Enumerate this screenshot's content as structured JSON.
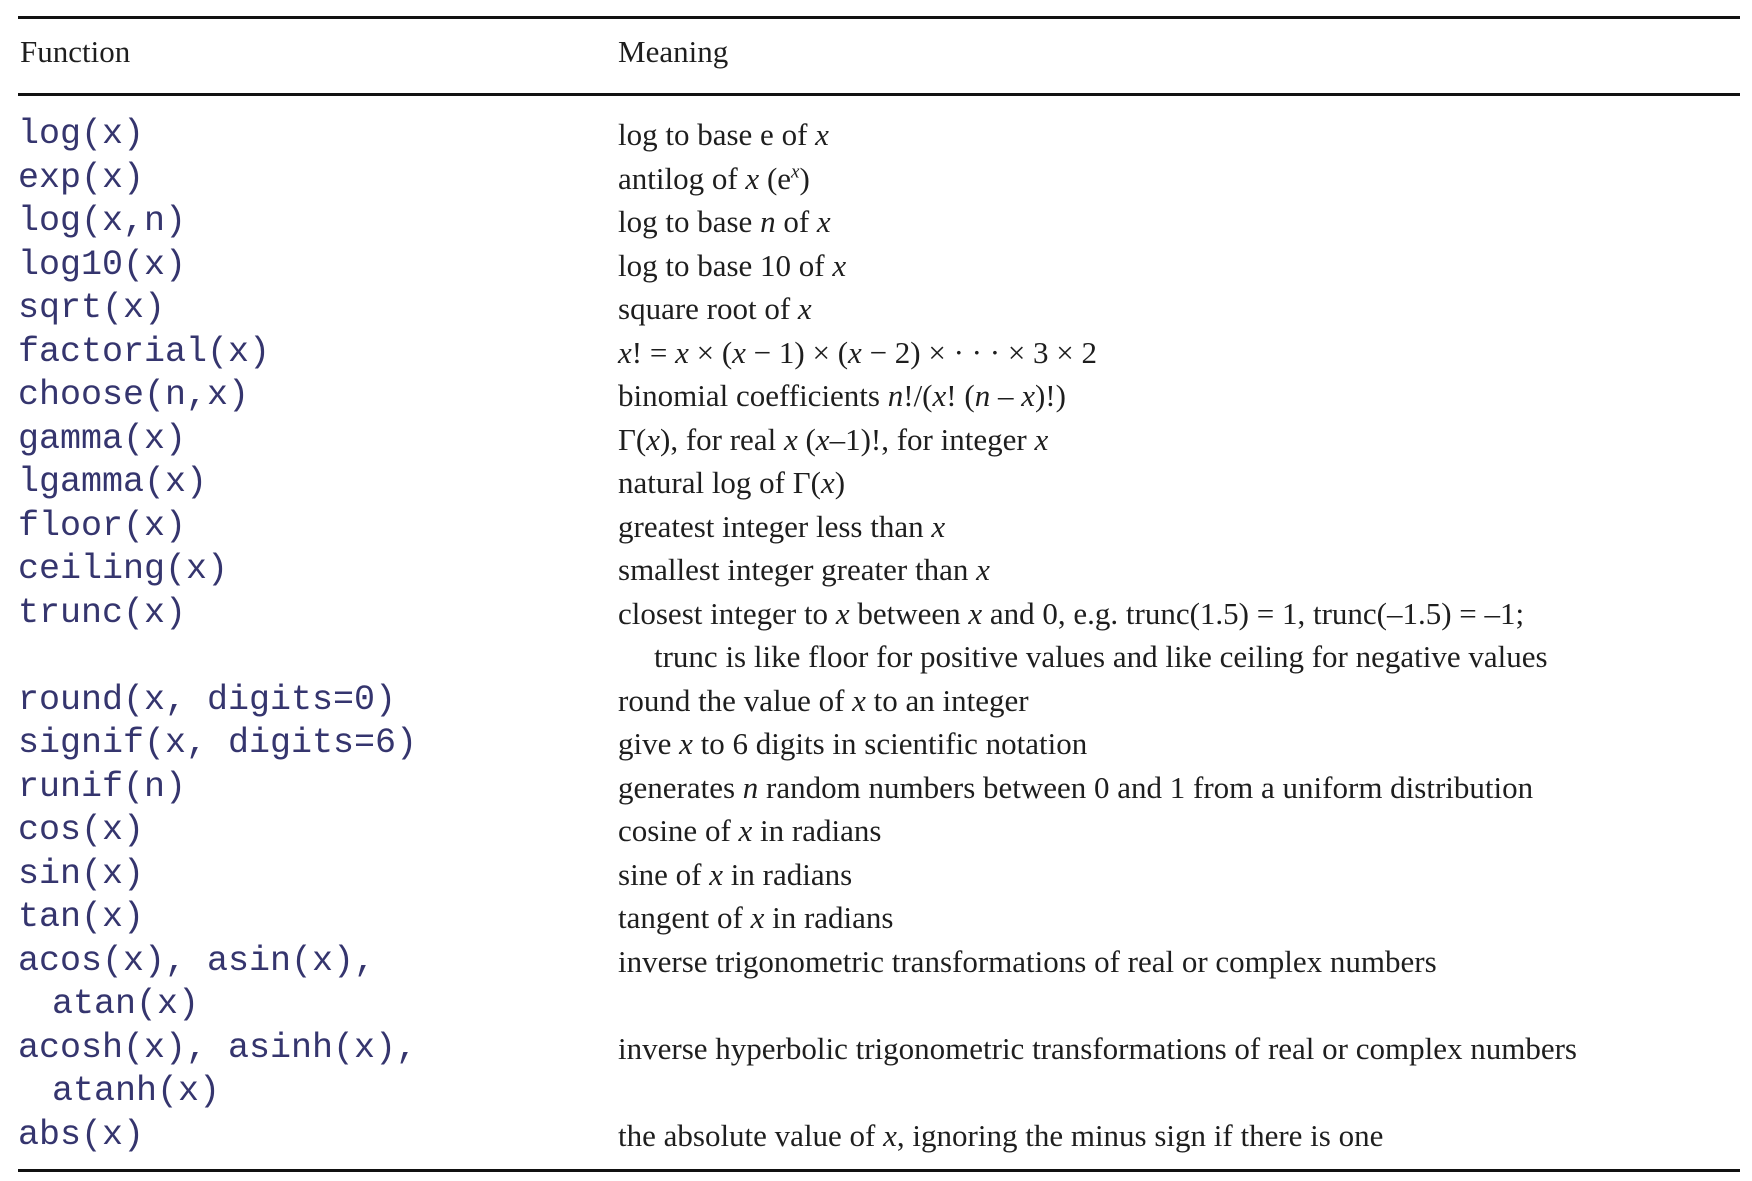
{
  "table": {
    "headers": {
      "function": "Function",
      "meaning": "Meaning"
    },
    "rows": [
      {
        "fn": [
          "log(x)"
        ],
        "meaning": [
          [
            {
              "t": "log to base e of "
            },
            {
              "t": "x",
              "i": true
            }
          ]
        ]
      },
      {
        "fn": [
          "exp(x)"
        ],
        "meaning": [
          [
            {
              "t": "antilog of "
            },
            {
              "t": "x",
              "i": true
            },
            {
              "t": " (e"
            },
            {
              "t": "x",
              "i": true,
              "sup": true
            },
            {
              "t": ")"
            }
          ]
        ]
      },
      {
        "fn": [
          "log(x,n)"
        ],
        "meaning": [
          [
            {
              "t": "log to base "
            },
            {
              "t": "n",
              "i": true
            },
            {
              "t": " of "
            },
            {
              "t": "x",
              "i": true
            }
          ]
        ]
      },
      {
        "fn": [
          "log10(x)"
        ],
        "meaning": [
          [
            {
              "t": "log to base 10 of "
            },
            {
              "t": "x",
              "i": true
            }
          ]
        ]
      },
      {
        "fn": [
          "sqrt(x)"
        ],
        "meaning": [
          [
            {
              "t": "square root of "
            },
            {
              "t": "x",
              "i": true
            }
          ]
        ]
      },
      {
        "fn": [
          "factorial(x)"
        ],
        "meaning": [
          [
            {
              "t": "x",
              "i": true
            },
            {
              "t": "! = "
            },
            {
              "t": "x",
              "i": true
            },
            {
              "t": " × ("
            },
            {
              "t": "x",
              "i": true
            },
            {
              "t": " − 1) × ("
            },
            {
              "t": "x",
              "i": true
            },
            {
              "t": " − 2) × · · · × 3 × 2"
            }
          ]
        ]
      },
      {
        "fn": [
          "choose(n,x)"
        ],
        "meaning": [
          [
            {
              "t": "binomial coefficients "
            },
            {
              "t": "n",
              "i": true
            },
            {
              "t": "!/("
            },
            {
              "t": "x",
              "i": true
            },
            {
              "t": "! ("
            },
            {
              "t": "n",
              "i": true
            },
            {
              "t": " – "
            },
            {
              "t": "x",
              "i": true
            },
            {
              "t": ")!)"
            }
          ]
        ]
      },
      {
        "fn": [
          "gamma(x)"
        ],
        "meaning": [
          [
            {
              "t": "Γ("
            },
            {
              "t": "x",
              "i": true
            },
            {
              "t": "), for real "
            },
            {
              "t": "x",
              "i": true
            },
            {
              "t": " ("
            },
            {
              "t": "x",
              "i": true
            },
            {
              "t": "–1)!, for integer "
            },
            {
              "t": "x",
              "i": true
            }
          ]
        ]
      },
      {
        "fn": [
          "lgamma(x)"
        ],
        "meaning": [
          [
            {
              "t": "natural log of Γ("
            },
            {
              "t": "x",
              "i": true
            },
            {
              "t": ")"
            }
          ]
        ]
      },
      {
        "fn": [
          "floor(x)"
        ],
        "meaning": [
          [
            {
              "t": "greatest integer less than "
            },
            {
              "t": "x",
              "i": true
            }
          ]
        ]
      },
      {
        "fn": [
          "ceiling(x)"
        ],
        "meaning": [
          [
            {
              "t": "smallest integer greater than "
            },
            {
              "t": "x",
              "i": true
            }
          ]
        ]
      },
      {
        "fn": [
          "trunc(x)"
        ],
        "meaning": [
          [
            {
              "t": "closest integer to "
            },
            {
              "t": "x",
              "i": true
            },
            {
              "t": " between "
            },
            {
              "t": "x",
              "i": true
            },
            {
              "t": " and 0, e.g. trunc(1.5) = 1, trunc(–1.5) = –1;"
            }
          ],
          [
            {
              "t": "trunc is like floor for positive values and like ceiling for negative values"
            }
          ]
        ]
      },
      {
        "fn": [
          "round(x, digits=0)"
        ],
        "meaning": [
          [
            {
              "t": "round the value of "
            },
            {
              "t": "x",
              "i": true
            },
            {
              "t": " to an integer"
            }
          ]
        ]
      },
      {
        "fn": [
          "signif(x, digits=6)"
        ],
        "meaning": [
          [
            {
              "t": "give "
            },
            {
              "t": "x",
              "i": true
            },
            {
              "t": " to 6 digits in scientific notation"
            }
          ]
        ]
      },
      {
        "fn": [
          "runif(n)"
        ],
        "meaning": [
          [
            {
              "t": "generates "
            },
            {
              "t": "n",
              "i": true
            },
            {
              "t": " random numbers between 0 and 1 from a uniform distribution"
            }
          ]
        ]
      },
      {
        "fn": [
          "cos(x)"
        ],
        "meaning": [
          [
            {
              "t": "cosine of "
            },
            {
              "t": "x",
              "i": true
            },
            {
              "t": " in radians"
            }
          ]
        ]
      },
      {
        "fn": [
          "sin(x)"
        ],
        "meaning": [
          [
            {
              "t": "sine of "
            },
            {
              "t": "x",
              "i": true
            },
            {
              "t": " in radians"
            }
          ]
        ]
      },
      {
        "fn": [
          "tan(x)"
        ],
        "meaning": [
          [
            {
              "t": "tangent of "
            },
            {
              "t": "x",
              "i": true
            },
            {
              "t": " in radians"
            }
          ]
        ]
      },
      {
        "fn": [
          "acos(x), asin(x),",
          "atan(x)"
        ],
        "meaning": [
          [
            {
              "t": "inverse trigonometric transformations of real or complex numbers"
            }
          ]
        ]
      },
      {
        "fn": [
          "acosh(x), asinh(x),",
          "atanh(x)"
        ],
        "meaning": [
          [
            {
              "t": "inverse hyperbolic trigonometric transformations of real or complex numbers"
            }
          ]
        ]
      },
      {
        "fn": [
          "abs(x)"
        ],
        "meaning": [
          [
            {
              "t": "the absolute value of "
            },
            {
              "t": "x",
              "i": true
            },
            {
              "t": ", ignoring the minus sign if there is one"
            }
          ]
        ]
      }
    ]
  }
}
